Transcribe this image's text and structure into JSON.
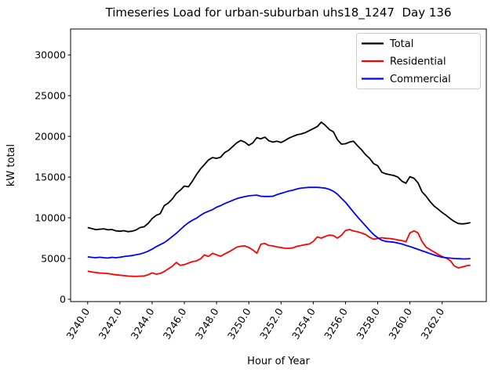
{
  "figure": {
    "title": "Timeseries Load for urban-suburban uhs18_1247  Day 136",
    "xlabel": "Hour of Year",
    "ylabel": "kW total",
    "background": "#ffffff"
  },
  "legend": {
    "position": "upper-right",
    "entries": [
      {
        "label": "Total",
        "color": "#000000"
      },
      {
        "label": "Residential",
        "color": "#ff0000"
      },
      {
        "label": "Commercial",
        "color": "#0000ff"
      }
    ]
  },
  "chart_data": {
    "type": "line",
    "title": "Timeseries Load for urban-suburban uhs18_1247  Day 136",
    "xlabel": "Hour of Year",
    "ylabel": "kW total",
    "grid": false,
    "xlim": [
      3238.94,
      3264.74
    ],
    "ylim": [
      -290,
      33190
    ],
    "xticks": {
      "values": [
        3240,
        3242,
        3244,
        3246,
        3248,
        3250,
        3252,
        3254,
        3256,
        3258,
        3260,
        3262
      ],
      "labels": [
        "3240.0",
        "3242.0",
        "3244.0",
        "3246.0",
        "3248.0",
        "3250.0",
        "3252.0",
        "3254.0",
        "3256.0",
        "3258.0",
        "3260.0",
        "3262.0"
      ],
      "rotation": -58
    },
    "yticks": {
      "values": [
        0,
        5000,
        10000,
        15000,
        20000,
        25000,
        30000
      ],
      "labels": [
        "0",
        "5000",
        "10000",
        "15000",
        "20000",
        "25000",
        "30000"
      ]
    },
    "x": [
      3240.0,
      3240.25,
      3240.5,
      3240.75,
      3241.0,
      3241.25,
      3241.5,
      3241.75,
      3242.0,
      3242.25,
      3242.5,
      3242.75,
      3243.0,
      3243.25,
      3243.5,
      3243.75,
      3244.0,
      3244.25,
      3244.5,
      3244.75,
      3245.0,
      3245.25,
      3245.5,
      3245.75,
      3246.0,
      3246.25,
      3246.5,
      3246.75,
      3247.0,
      3247.25,
      3247.5,
      3247.75,
      3248.0,
      3248.25,
      3248.5,
      3248.75,
      3249.0,
      3249.25,
      3249.5,
      3249.75,
      3250.0,
      3250.25,
      3250.5,
      3250.75,
      3251.0,
      3251.25,
      3251.5,
      3251.75,
      3252.0,
      3252.25,
      3252.5,
      3252.75,
      3253.0,
      3253.25,
      3253.5,
      3253.75,
      3254.0,
      3254.25,
      3254.5,
      3254.75,
      3255.0,
      3255.25,
      3255.5,
      3255.75,
      3256.0,
      3256.25,
      3256.5,
      3256.75,
      3257.0,
      3257.25,
      3257.5,
      3257.75,
      3258.0,
      3258.25,
      3258.5,
      3258.75,
      3259.0,
      3259.25,
      3259.5,
      3259.75,
      3260.0,
      3260.25,
      3260.5,
      3260.75,
      3261.0,
      3261.25,
      3261.5,
      3261.75,
      3262.0,
      3262.25,
      3262.5,
      3262.75,
      3263.0,
      3263.25,
      3263.5,
      3263.75
    ],
    "series": [
      {
        "name": "Total",
        "color": "#000000",
        "values": [
          8800,
          8680,
          8550,
          8600,
          8650,
          8520,
          8560,
          8400,
          8350,
          8420,
          8300,
          8350,
          8500,
          8800,
          8900,
          9300,
          9900,
          10300,
          10500,
          11500,
          11800,
          12300,
          13000,
          13400,
          13900,
          13800,
          14500,
          15300,
          16000,
          16550,
          17100,
          17400,
          17300,
          17450,
          18000,
          18300,
          18750,
          19200,
          19500,
          19300,
          18900,
          19200,
          19850,
          19700,
          19900,
          19450,
          19300,
          19400,
          19250,
          19500,
          19800,
          20000,
          20200,
          20300,
          20450,
          20700,
          20950,
          21200,
          21750,
          21350,
          20850,
          20550,
          19600,
          19050,
          19100,
          19300,
          19400,
          18850,
          18350,
          17750,
          17300,
          16650,
          16400,
          15600,
          15400,
          15300,
          15200,
          15000,
          14500,
          14250,
          15050,
          14850,
          14300,
          13200,
          12650,
          12000,
          11450,
          11050,
          10650,
          10300,
          9900,
          9550,
          9300,
          9250,
          9300,
          9400
        ]
      },
      {
        "name": "Residential",
        "color": "#ff0000",
        "values": [
          3450,
          3350,
          3280,
          3220,
          3180,
          3150,
          3080,
          3000,
          2950,
          2900,
          2850,
          2820,
          2800,
          2840,
          2860,
          3000,
          3240,
          3080,
          3160,
          3400,
          3720,
          4040,
          4520,
          4150,
          4250,
          4430,
          4620,
          4700,
          4950,
          5450,
          5250,
          5650,
          5450,
          5280,
          5560,
          5800,
          6100,
          6400,
          6500,
          6550,
          6350,
          6050,
          5650,
          6750,
          6850,
          6600,
          6550,
          6420,
          6350,
          6250,
          6250,
          6320,
          6500,
          6600,
          6700,
          6780,
          7100,
          7650,
          7500,
          7720,
          7880,
          7820,
          7500,
          7850,
          8450,
          8560,
          8380,
          8280,
          8130,
          7950,
          7600,
          7380,
          7450,
          7550,
          7480,
          7450,
          7380,
          7280,
          7200,
          7050,
          8150,
          8400,
          8150,
          7100,
          6400,
          6100,
          5800,
          5500,
          5250,
          5050,
          4750,
          4100,
          3850,
          3950,
          4100,
          4180
        ]
      },
      {
        "name": "Commercial",
        "color": "#0000ff",
        "values": [
          5200,
          5150,
          5100,
          5160,
          5100,
          5060,
          5150,
          5100,
          5160,
          5240,
          5300,
          5360,
          5450,
          5550,
          5700,
          5900,
          6150,
          6450,
          6700,
          6950,
          7300,
          7700,
          8100,
          8550,
          9000,
          9400,
          9700,
          9950,
          10300,
          10600,
          10800,
          11000,
          11300,
          11500,
          11750,
          11950,
          12150,
          12350,
          12500,
          12600,
          12700,
          12750,
          12780,
          12650,
          12620,
          12620,
          12650,
          12850,
          13000,
          13150,
          13300,
          13400,
          13550,
          13650,
          13700,
          13740,
          13750,
          13740,
          13700,
          13640,
          13500,
          13260,
          12900,
          12400,
          11900,
          11300,
          10700,
          10100,
          9550,
          9000,
          8450,
          7950,
          7550,
          7250,
          7100,
          7050,
          7000,
          6900,
          6780,
          6620,
          6470,
          6300,
          6120,
          5950,
          5780,
          5600,
          5430,
          5280,
          5160,
          5100,
          5050,
          5000,
          4980,
          4950,
          4950,
          4990
        ]
      }
    ]
  }
}
